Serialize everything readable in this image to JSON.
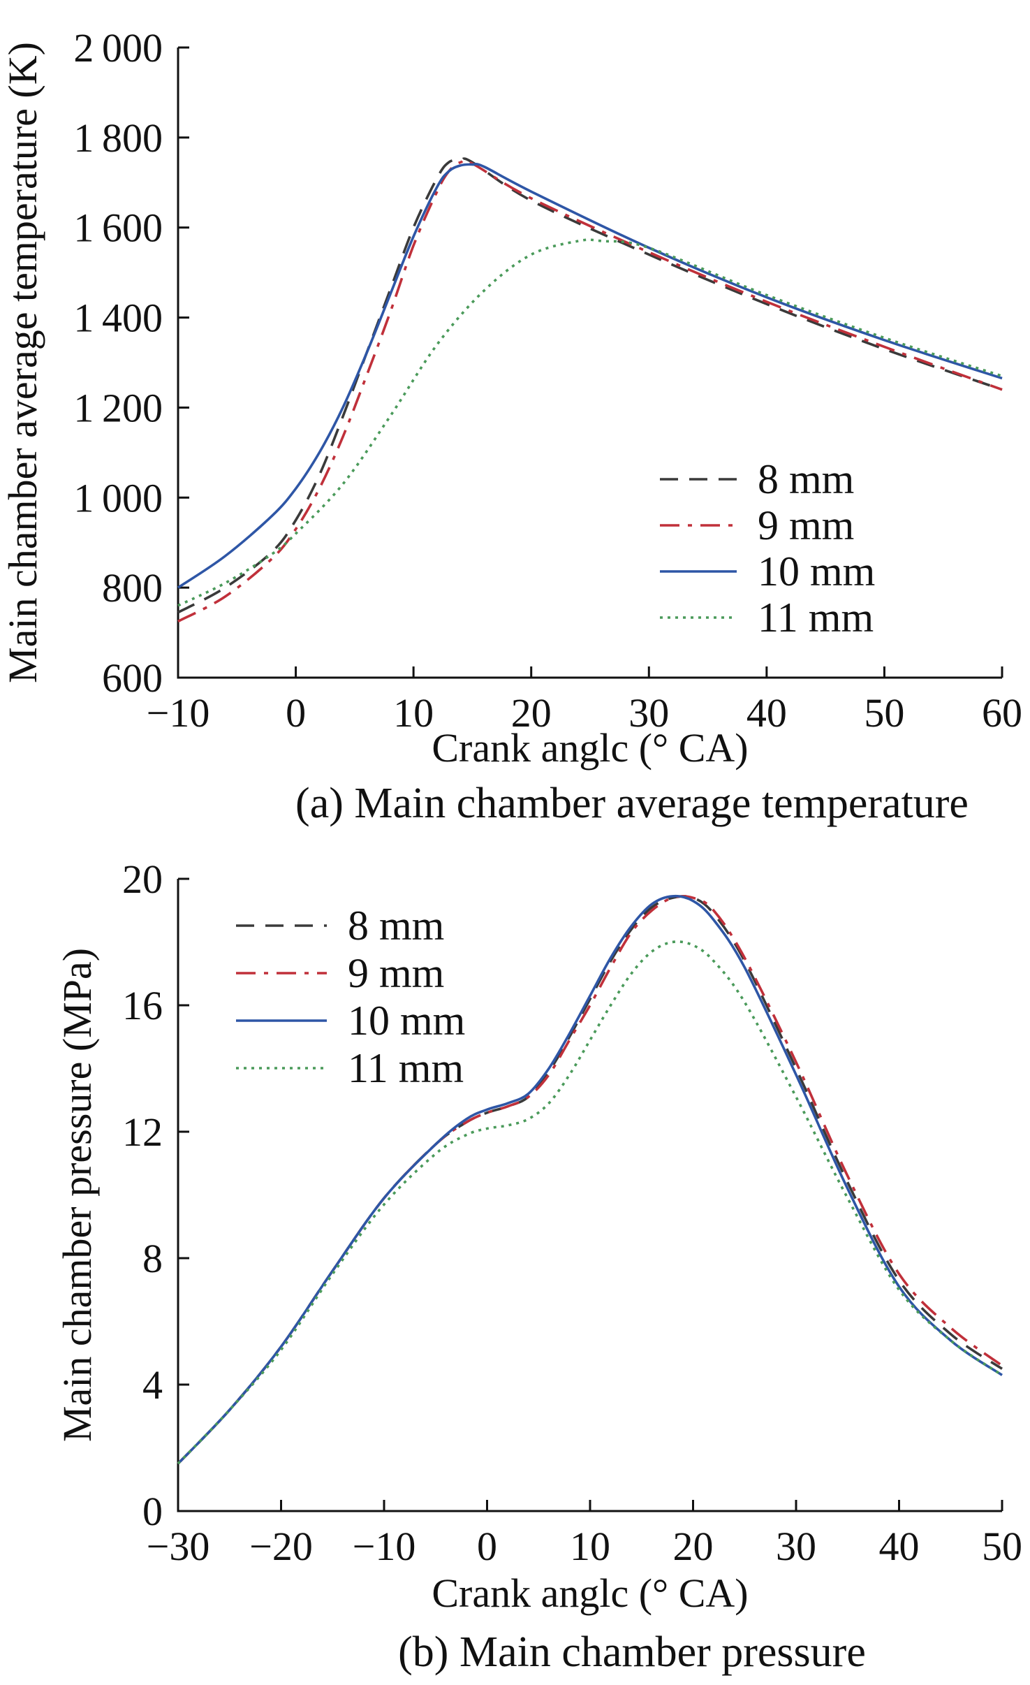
{
  "chart_data": [
    {
      "type": "line",
      "caption": "(a) Main chamber average temperature",
      "xlabel": "Crank anglc (° CA)",
      "ylabel": "Main chamber average temperature (K)",
      "xlim": [
        -10,
        60
      ],
      "ylim": [
        600,
        2000
      ],
      "xticks": [
        -10,
        0,
        10,
        20,
        30,
        40,
        50,
        60
      ],
      "yticks": [
        600,
        800,
        1000,
        1200,
        1400,
        1600,
        1800,
        2000
      ],
      "xtick_labels": [
        "−10",
        "0",
        "10",
        "20",
        "30",
        "40",
        "50",
        "60"
      ],
      "ytick_labels": [
        "600",
        "800",
        "1 000",
        "1 200",
        "1 400",
        "1 600",
        "1 800",
        "2 000"
      ],
      "legend_position": "center-right",
      "series": [
        {
          "name": "8 mm",
          "color": "#3a3a3a",
          "dash": "dashed",
          "x": [
            -10,
            -6,
            -2,
            0,
            2,
            4,
            6,
            8,
            10,
            12,
            13,
            14,
            15,
            20,
            30,
            40,
            50,
            60
          ],
          "y": [
            745,
            800,
            880,
            950,
            1050,
            1180,
            1320,
            1460,
            1600,
            1710,
            1745,
            1750,
            1745,
            1660,
            1540,
            1430,
            1330,
            1240
          ]
        },
        {
          "name": "9 mm",
          "color": "#c0303a",
          "dash": "dashdot",
          "x": [
            -10,
            -6,
            -2,
            0,
            2,
            4,
            6,
            8,
            10,
            12,
            13,
            14,
            15,
            20,
            30,
            40,
            50,
            60
          ],
          "y": [
            725,
            780,
            865,
            930,
            1020,
            1135,
            1270,
            1410,
            1560,
            1680,
            1725,
            1745,
            1742,
            1665,
            1545,
            1435,
            1335,
            1240
          ]
        },
        {
          "name": "10 mm",
          "color": "#2e56a6",
          "dash": "solid",
          "x": [
            -10,
            -6,
            -2,
            0,
            2,
            4,
            6,
            8,
            10,
            12,
            13,
            14,
            15,
            16,
            20,
            30,
            40,
            50,
            60
          ],
          "y": [
            800,
            870,
            960,
            1020,
            1100,
            1200,
            1320,
            1450,
            1580,
            1690,
            1725,
            1738,
            1740,
            1735,
            1680,
            1555,
            1445,
            1350,
            1265
          ]
        },
        {
          "name": "11 mm",
          "color": "#4a9a5a",
          "dash": "dotted",
          "x": [
            -10,
            -6,
            -2,
            0,
            4,
            8,
            12,
            16,
            20,
            24,
            26,
            30,
            40,
            50,
            60
          ],
          "y": [
            760,
            810,
            875,
            920,
            1030,
            1180,
            1340,
            1460,
            1540,
            1570,
            1570,
            1555,
            1450,
            1355,
            1270
          ]
        }
      ]
    },
    {
      "type": "line",
      "caption": "(b) Main chamber pressure",
      "xlabel": "Crank anglc (° CA)",
      "ylabel": "Main chamber pressure (MPa)",
      "xlim": [
        -30,
        50
      ],
      "ylim": [
        0,
        20
      ],
      "xticks": [
        -30,
        -20,
        -10,
        0,
        10,
        20,
        30,
        40,
        50
      ],
      "yticks": [
        0,
        4,
        8,
        12,
        16,
        20
      ],
      "xtick_labels": [
        "−30",
        "−20",
        "−10",
        "0",
        "10",
        "20",
        "30",
        "40",
        "50"
      ],
      "ytick_labels": [
        "0",
        "4",
        "8",
        "12",
        "16",
        "20"
      ],
      "legend_position": "top-left",
      "series": [
        {
          "name": "8 mm",
          "color": "#3a3a3a",
          "dash": "dashed",
          "x": [
            -30,
            -25,
            -20,
            -15,
            -10,
            -5,
            -2,
            0,
            2,
            4,
            6,
            8,
            10,
            12,
            14,
            16,
            18,
            20,
            22,
            25,
            30,
            35,
            40,
            45,
            50
          ],
          "y": [
            1.5,
            3.2,
            5.2,
            7.6,
            9.9,
            11.6,
            12.3,
            12.6,
            12.8,
            13.1,
            13.9,
            15.0,
            16.2,
            17.4,
            18.4,
            19.1,
            19.4,
            19.4,
            18.9,
            17.4,
            14.0,
            10.4,
            7.3,
            5.6,
            4.5
          ]
        },
        {
          "name": "9 mm",
          "color": "#c0303a",
          "dash": "dashdot",
          "x": [
            -30,
            -25,
            -20,
            -15,
            -10,
            -5,
            -2,
            0,
            2,
            4,
            6,
            8,
            10,
            12,
            14,
            16,
            18,
            20,
            22,
            25,
            30,
            35,
            40,
            45,
            50
          ],
          "y": [
            1.5,
            3.2,
            5.2,
            7.6,
            9.9,
            11.6,
            12.3,
            12.6,
            12.8,
            13.1,
            13.8,
            14.9,
            16.0,
            17.2,
            18.3,
            19.0,
            19.4,
            19.4,
            19.0,
            17.5,
            14.2,
            10.6,
            7.5,
            5.8,
            4.6
          ]
        },
        {
          "name": "10 mm",
          "color": "#2e56a6",
          "dash": "solid",
          "x": [
            -30,
            -25,
            -20,
            -15,
            -10,
            -5,
            -2,
            0,
            2,
            4,
            6,
            8,
            10,
            12,
            14,
            16,
            18,
            20,
            22,
            25,
            30,
            35,
            40,
            45,
            50
          ],
          "y": [
            1.5,
            3.2,
            5.2,
            7.6,
            9.9,
            11.6,
            12.4,
            12.7,
            12.9,
            13.2,
            14.0,
            15.1,
            16.3,
            17.5,
            18.5,
            19.2,
            19.45,
            19.3,
            18.7,
            17.2,
            13.8,
            10.2,
            7.1,
            5.4,
            4.3
          ]
        },
        {
          "name": "11 mm",
          "color": "#4a9a5a",
          "dash": "dotted",
          "x": [
            -30,
            -25,
            -20,
            -15,
            -10,
            -5,
            -2,
            0,
            2,
            4,
            6,
            8,
            10,
            12,
            14,
            16,
            18,
            20,
            22,
            25,
            30,
            35,
            40,
            45,
            50
          ],
          "y": [
            1.5,
            3.2,
            5.1,
            7.5,
            9.7,
            11.3,
            11.9,
            12.1,
            12.2,
            12.4,
            12.9,
            13.8,
            14.9,
            16.0,
            17.0,
            17.7,
            18.0,
            17.9,
            17.4,
            16.1,
            13.1,
            9.9,
            7.0,
            5.4,
            4.3
          ]
        }
      ]
    }
  ]
}
